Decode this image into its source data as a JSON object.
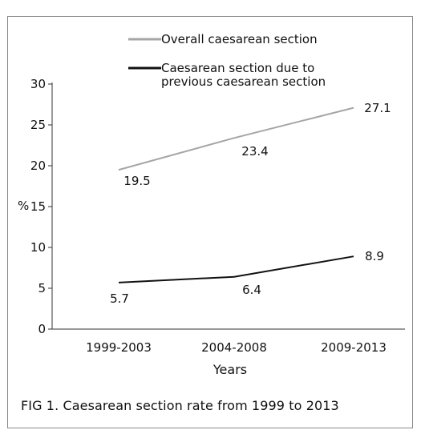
{
  "chart_data": {
    "type": "line",
    "categories": [
      "1999-2003",
      "2004-2008",
      "2009-2013"
    ],
    "series": [
      {
        "name": "Overall caesarean section",
        "values": [
          19.5,
          23.4,
          27.1
        ],
        "color": "#a6a6a6"
      },
      {
        "name": "Caesarean section due to previous caesarean section",
        "values": [
          5.7,
          6.4,
          8.9
        ],
        "color": "#111111"
      }
    ],
    "legend": {
      "entries": [
        {
          "lines": [
            "Overall caesarean section"
          ],
          "color": "#a6a6a6"
        },
        {
          "lines": [
            "Caesarean section due to",
            "previous caesarean section"
          ],
          "color": "#111111"
        }
      ],
      "position": "top-center"
    },
    "value_labels": [
      [
        "19.5",
        "23.4",
        "27.1"
      ],
      [
        "5.7",
        "6.4",
        "8.9"
      ]
    ],
    "yticks": [
      0,
      5,
      10,
      15,
      20,
      25,
      30
    ],
    "ylim": [
      0,
      30
    ],
    "ylabel": "%",
    "xlabel": "Years",
    "grid": false
  },
  "caption": "FIG 1.  Caesarean section rate from 1999 to 2013"
}
